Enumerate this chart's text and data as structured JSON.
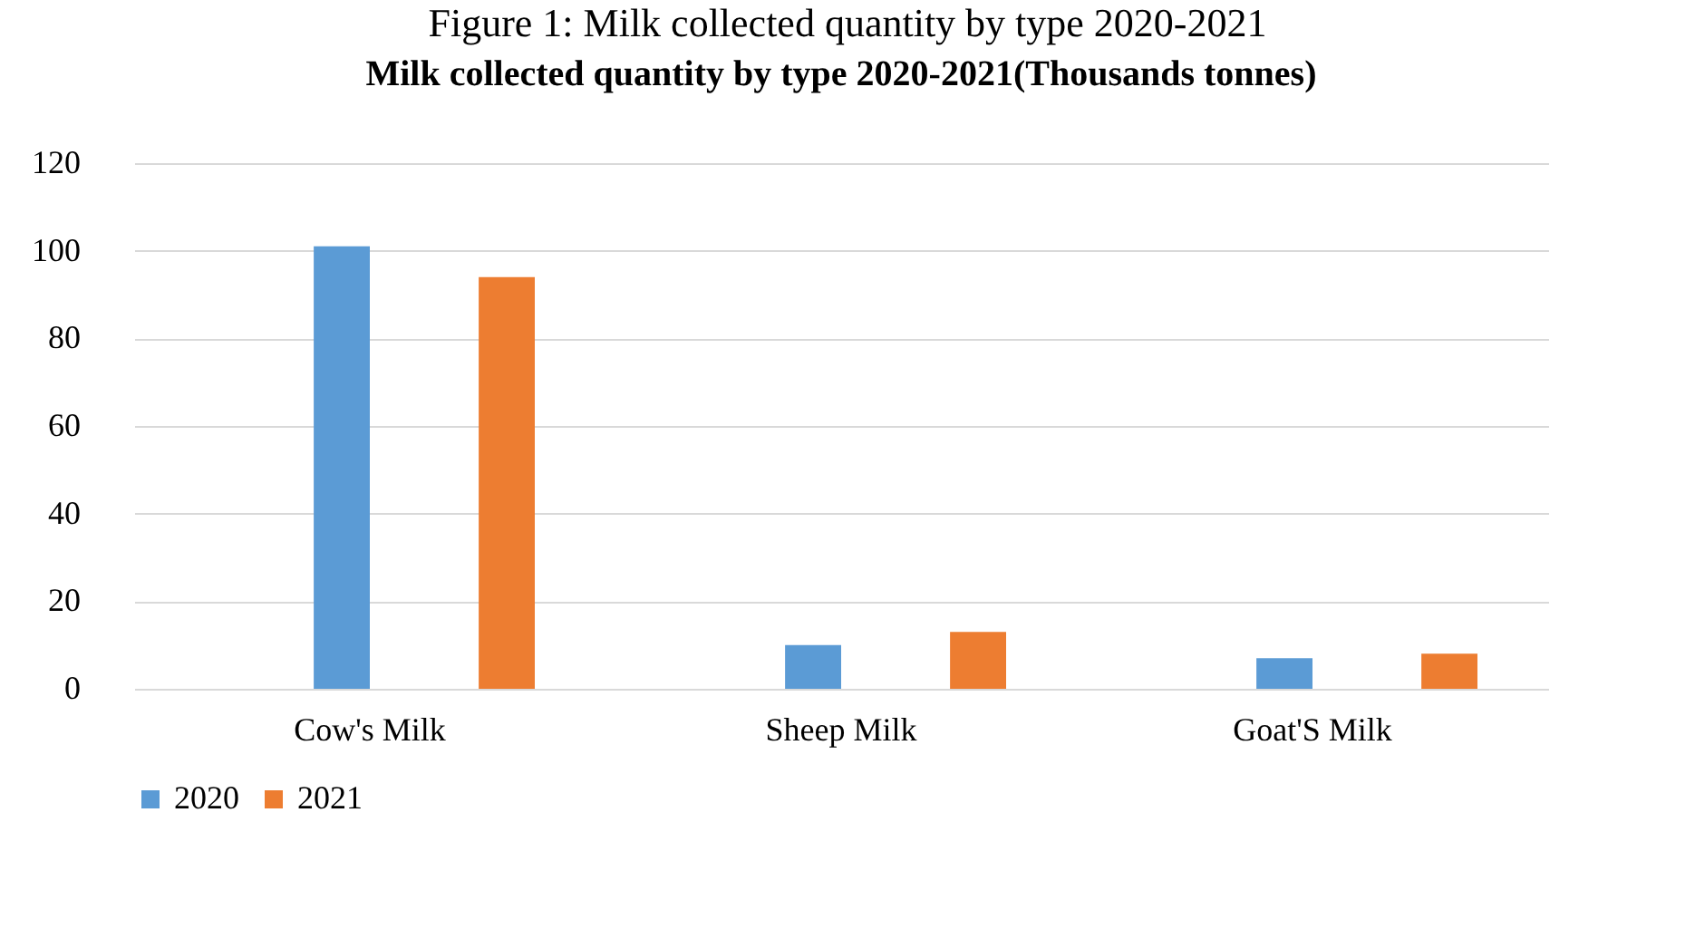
{
  "chart_data": {
    "type": "bar",
    "title": "Milk collected quantity by type 2020-2021(Thousands tonnes)",
    "annotations": [
      "Figure 1: Milk collected quantity by type 2020-2021"
    ],
    "categories": [
      "Cow's Milk",
      "Sheep Milk",
      "Goat'S Milk"
    ],
    "series": [
      {
        "name": "2020",
        "color": "#5b9bd5",
        "values": [
          101,
          10,
          7
        ]
      },
      {
        "name": "2021",
        "color": "#ed7d31",
        "values": [
          94,
          13,
          8
        ]
      }
    ],
    "ylim": [
      0,
      120
    ],
    "yticks": [
      0,
      20,
      40,
      60,
      80,
      100,
      120
    ],
    "grid": "y",
    "legend": "bottom"
  }
}
